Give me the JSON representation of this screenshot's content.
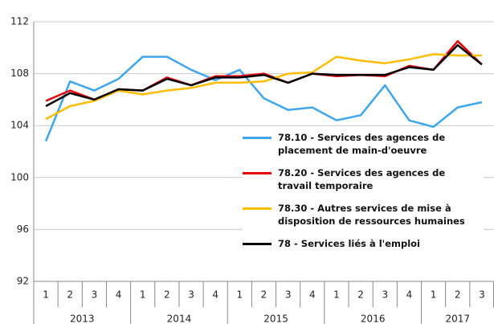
{
  "chart_data": {
    "type": "line",
    "categories": [
      "1",
      "2",
      "3",
      "4",
      "1",
      "2",
      "3",
      "4",
      "1",
      "2",
      "3",
      "4",
      "1",
      "2",
      "3",
      "4",
      "1",
      "2",
      "3"
    ],
    "year_groups": [
      "2013",
      "2014",
      "2015",
      "2016",
      "2017"
    ],
    "ylim": [
      92,
      112
    ],
    "yticks": [
      92,
      96,
      100,
      104,
      108,
      112
    ],
    "grid": true,
    "series": [
      {
        "name": "78.10 - Services des agences de placement de main-d'oeuvre",
        "color": "#3ea6ef",
        "values": [
          102.8,
          107.4,
          106.7,
          107.6,
          109.3,
          109.3,
          108.3,
          107.5,
          108.3,
          106.1,
          105.2,
          105.4,
          104.4,
          104.8,
          107.1,
          104.4,
          103.9,
          105.4,
          105.8
        ]
      },
      {
        "name": "78.20 - Services des agences de travail temporaire",
        "color": "#e8000b",
        "values": [
          105.9,
          106.7,
          106.0,
          106.8,
          106.7,
          107.7,
          107.1,
          107.8,
          107.8,
          108.0,
          107.3,
          108.0,
          107.8,
          107.9,
          107.8,
          108.6,
          108.3,
          110.5,
          108.7
        ]
      },
      {
        "name": "78.30 - Autres services de mise à disposition de ressources humaines",
        "color": "#ffbd00",
        "values": [
          104.5,
          105.5,
          105.9,
          106.7,
          106.4,
          106.7,
          106.9,
          107.3,
          107.3,
          107.4,
          108.0,
          108.1,
          109.3,
          109.0,
          108.8,
          109.1,
          109.5,
          109.4,
          109.4
        ]
      },
      {
        "name": "78 - Services liés à l'emploi",
        "color": "#000000",
        "values": [
          105.5,
          106.5,
          106.0,
          106.8,
          106.7,
          107.6,
          107.1,
          107.7,
          107.7,
          107.9,
          107.3,
          108.0,
          107.9,
          107.9,
          107.9,
          108.5,
          108.3,
          110.2,
          108.7
        ]
      }
    ]
  }
}
